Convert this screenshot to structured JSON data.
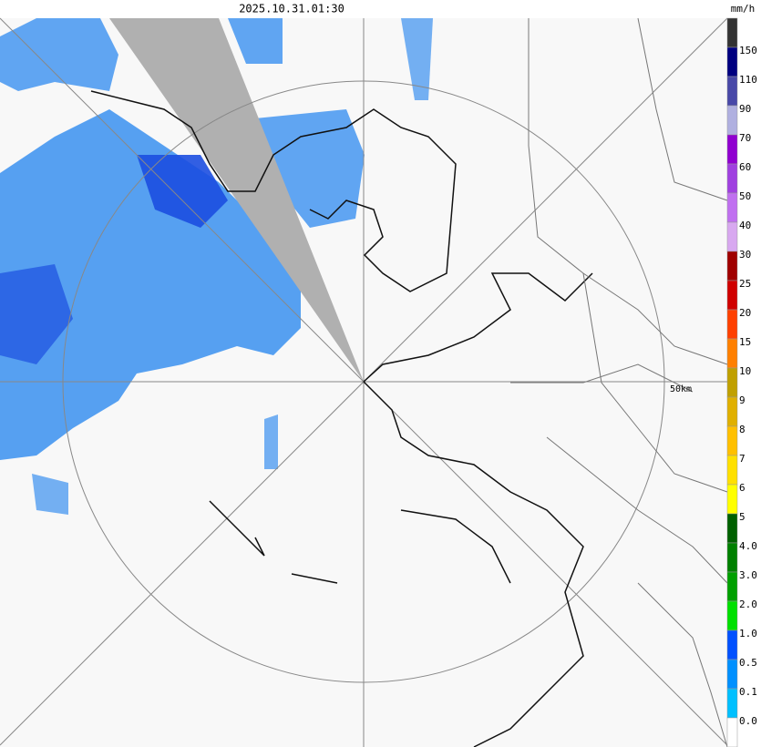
{
  "header": {
    "timestamp": "2025.10.31.01:30"
  },
  "legend": {
    "unit": "mm/h",
    "labels": [
      "150",
      "110",
      "90",
      "70",
      "60",
      "50",
      "40",
      "30",
      "25",
      "20",
      "15",
      "10",
      "9",
      "8",
      "7",
      "6",
      "5",
      "4.0",
      "3.0",
      "2.0",
      "1.0",
      "0.5",
      "0.1",
      "0.0"
    ],
    "colors": [
      "#333333",
      "#000080",
      "#4848a8",
      "#b0b0e0",
      "#9000d0",
      "#a040e0",
      "#c070f0",
      "#d8a8f0",
      "#a00000",
      "#d00000",
      "#ff4000",
      "#ff8000",
      "#c0a000",
      "#e0b000",
      "#ffc000",
      "#ffe000",
      "#ffff00",
      "#006000",
      "#008000",
      "#00a000",
      "#00e000",
      "#0050ff",
      "#0090ff",
      "#00c0ff",
      "#ffffff"
    ]
  },
  "map": {
    "range_label": "50km"
  }
}
